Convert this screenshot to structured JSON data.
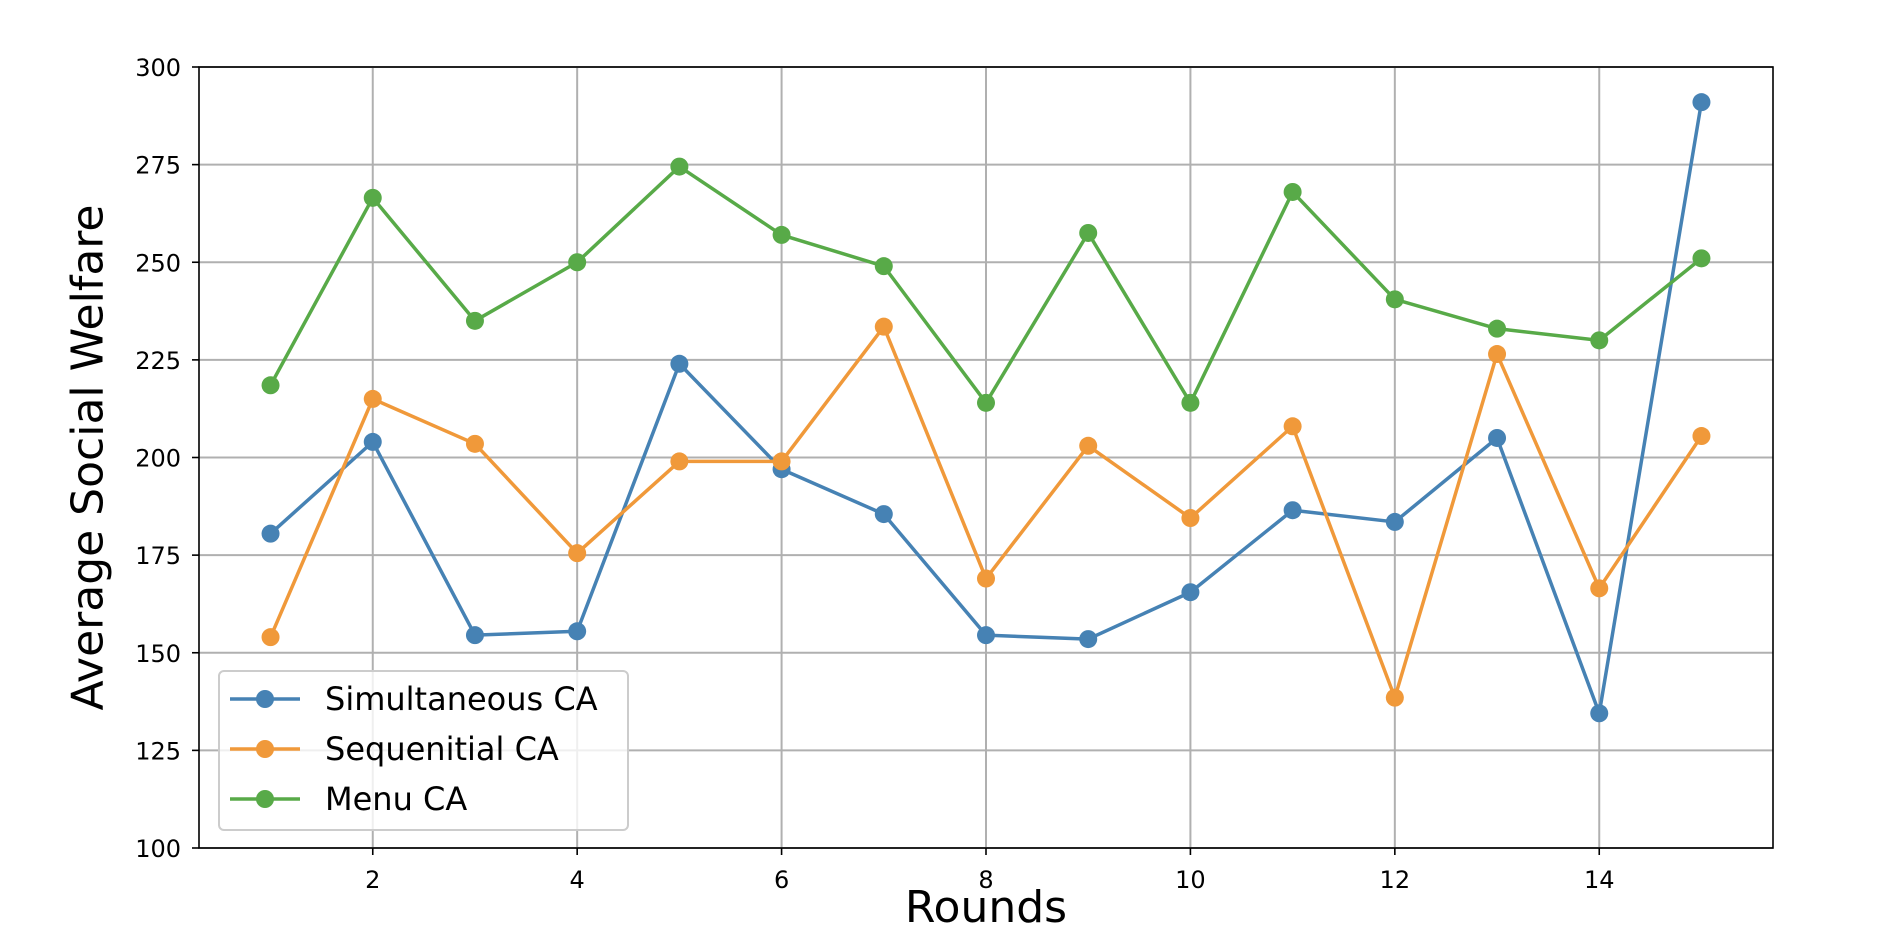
{
  "chart_data": {
    "type": "line",
    "title": "",
    "xlabel": "Rounds",
    "ylabel": "Average Social Welfare",
    "x": [
      1,
      2,
      3,
      4,
      5,
      6,
      7,
      8,
      9,
      10,
      11,
      12,
      13,
      14,
      15
    ],
    "xlim": [
      0.3,
      15.7
    ],
    "ylim": [
      100,
      300
    ],
    "xticks": [
      2,
      4,
      6,
      8,
      10,
      12,
      14
    ],
    "yticks": [
      100,
      125,
      150,
      175,
      200,
      225,
      250,
      275,
      300
    ],
    "grid": true,
    "legend_position": "lower-left",
    "series": [
      {
        "name": "Simultaneous CA",
        "color": "#4682b4",
        "marker": "circle",
        "values": [
          180.5,
          204,
          154.5,
          155.5,
          224,
          197,
          185.5,
          154.5,
          153.5,
          165.5,
          186.5,
          183.5,
          205,
          134.5,
          291
        ]
      },
      {
        "name": "Sequenitial CA",
        "color": "#f0993a",
        "marker": "circle",
        "values": [
          154,
          215,
          203.5,
          175.5,
          199,
          199,
          233.5,
          169,
          203,
          184.5,
          208,
          138.5,
          226.5,
          166.5,
          205.5
        ]
      },
      {
        "name": "Menu CA",
        "color": "#58aa48",
        "marker": "circle",
        "values": [
          218.5,
          266.5,
          235,
          250,
          274.5,
          257,
          249,
          214,
          257.5,
          214,
          268,
          240.5,
          233,
          230,
          251
        ]
      }
    ]
  }
}
